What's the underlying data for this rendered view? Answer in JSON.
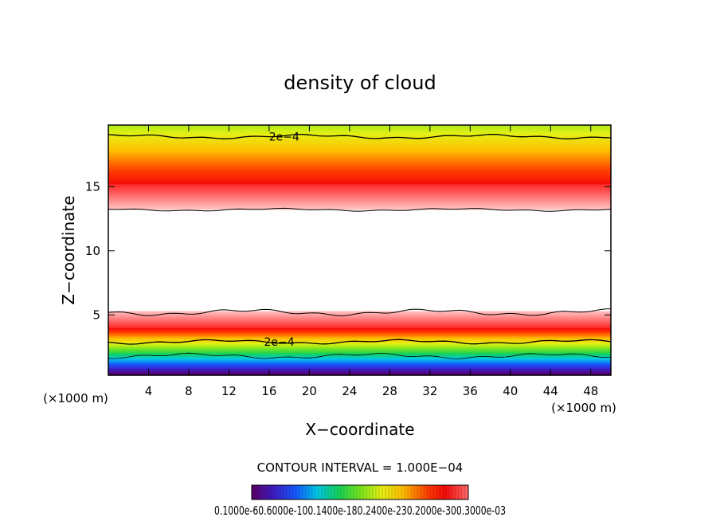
{
  "chart_data": {
    "type": "heatmap",
    "title": "density of cloud",
    "xlabel": "X−coordinate",
    "ylabel": "Z−coordinate",
    "x_unit_left": "(×1000 m)",
    "x_unit_right": "(×1000 m)",
    "xlim": [
      0,
      50
    ],
    "ylim": [
      0.3,
      19.8
    ],
    "x_ticks": [
      4,
      8,
      12,
      16,
      20,
      24,
      28,
      32,
      36,
      40,
      44,
      48
    ],
    "y_ticks": [
      5,
      10,
      15
    ],
    "contour_interval_text": "CONTOUR INTERVAL = 1.000E−04",
    "contour_labels": [
      {
        "text": "2e−4",
        "x": 17.5,
        "y": 18.9
      },
      {
        "text": "2e−4",
        "x": 17.0,
        "y": 2.9
      }
    ],
    "colorbar_labels_text": "0.1000e-60.6000e-100.1400e-180.2400e-230.2000e-300.3000e-03",
    "colorbar_min": 0.0,
    "colorbar_max": 0.0003,
    "layers": [
      {
        "name": "upper cloud layer",
        "z_bottom": 13.2,
        "z_peak": 15.2,
        "z_top": 19.8,
        "peak_density": 0.0003
      },
      {
        "name": "lower cloud layer",
        "z_bottom": 0.6,
        "z_peak": 4.0,
        "z_top": 5.3,
        "peak_density": 0.0003
      }
    ],
    "grid": false
  }
}
